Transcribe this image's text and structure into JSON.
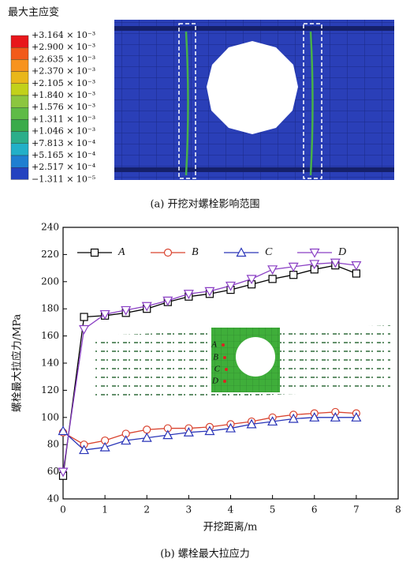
{
  "panel_a": {
    "legend_title": "最大主应变",
    "legend_labels": [
      "+3.164 × 10⁻³",
      "+2.900 × 10⁻³",
      "+2.635 × 10⁻³",
      "+2.370 × 10⁻³",
      "+2.105 × 10⁻³",
      "+1.840 × 10⁻³",
      "+1.576 × 10⁻³",
      "+1.311 × 10⁻³",
      "+1.046 × 10⁻³",
      "+7.813 × 10⁻⁴",
      "+5.165 × 10⁻⁴",
      "+2.517 × 10⁻⁴",
      "−1.311 × 10⁻⁵"
    ],
    "legend_colors": [
      "#e8171b",
      "#f25a1a",
      "#f7931e",
      "#e9b71a",
      "#c2d11a",
      "#8cc63f",
      "#5fbb46",
      "#3aab4a",
      "#2bae8a",
      "#22b0c8",
      "#1f7fd1",
      "#2443c0"
    ],
    "caption": "(a) 开挖对螺栓影响范围"
  },
  "chart_data": {
    "type": "line",
    "x_label": "开挖距离/m",
    "y_label": "螺栓最大拉应力/MPa",
    "caption": "(b) 螺栓最大拉应力",
    "x": [
      0,
      0.5,
      1,
      1.5,
      2,
      2.5,
      3,
      3.5,
      4,
      4.5,
      5,
      5.5,
      6,
      6.5,
      7
    ],
    "series": [
      {
        "name": "A",
        "color": "#000000",
        "marker": "square",
        "values": [
          57,
          174,
          175,
          177,
          180,
          185,
          189,
          191,
          194,
          198,
          202,
          205,
          209,
          212,
          206
        ]
      },
      {
        "name": "B",
        "color": "#d9432f",
        "marker": "circle",
        "values": [
          89,
          80,
          83,
          88,
          91,
          92,
          92,
          93,
          95,
          97,
          100,
          102,
          103,
          104,
          103
        ]
      },
      {
        "name": "C",
        "color": "#2a35b8",
        "marker": "triangle-up",
        "values": [
          90,
          76,
          78,
          83,
          85,
          87,
          89,
          90,
          92,
          95,
          97,
          99,
          100,
          100,
          100
        ]
      },
      {
        "name": "D",
        "color": "#8a3fc4",
        "marker": "triangle-down",
        "values": [
          60,
          165,
          176,
          179,
          182,
          186,
          191,
          193,
          197,
          202,
          209,
          211,
          213,
          214,
          212
        ]
      }
    ],
    "xlim": [
      0,
      8
    ],
    "xticks": [
      0,
      1,
      2,
      3,
      4,
      5,
      6,
      7,
      8
    ],
    "ylim": [
      40,
      240
    ],
    "yticks": [
      40,
      60,
      80,
      100,
      120,
      140,
      160,
      180,
      200,
      220,
      240
    ]
  }
}
